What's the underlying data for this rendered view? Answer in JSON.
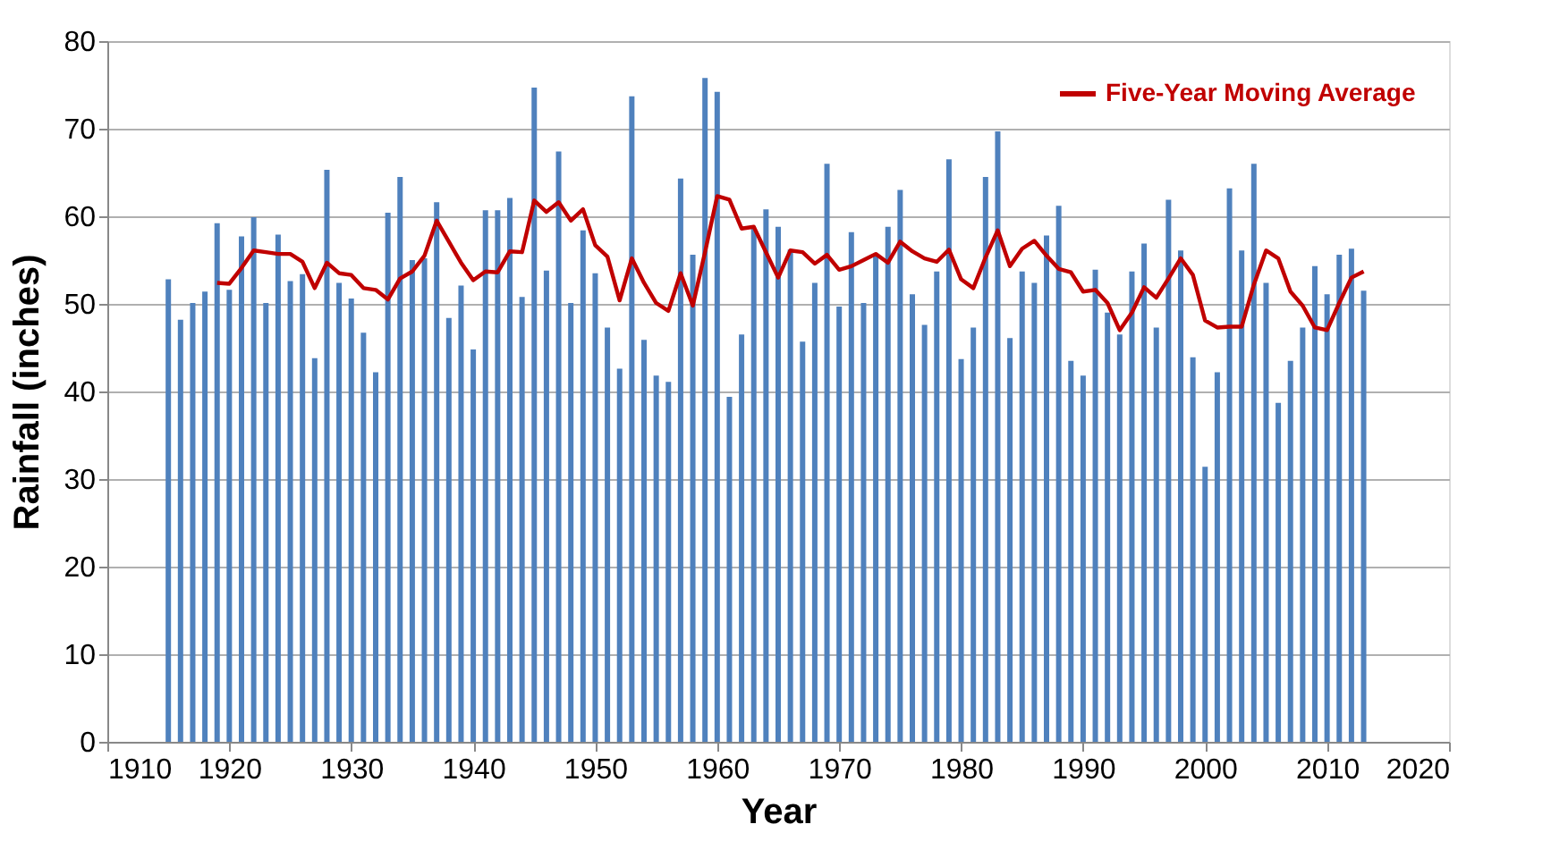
{
  "chart_data": {
    "type": "bar",
    "xlabel": "Year",
    "ylabel": "Rainfall (inches)",
    "x": [
      1915,
      1916,
      1917,
      1918,
      1919,
      1920,
      1921,
      1922,
      1923,
      1924,
      1925,
      1926,
      1927,
      1928,
      1929,
      1930,
      1931,
      1932,
      1933,
      1934,
      1935,
      1936,
      1937,
      1938,
      1939,
      1940,
      1941,
      1942,
      1943,
      1944,
      1945,
      1946,
      1947,
      1948,
      1949,
      1950,
      1951,
      1952,
      1953,
      1954,
      1955,
      1956,
      1957,
      1958,
      1959,
      1960,
      1961,
      1962,
      1963,
      1964,
      1965,
      1966,
      1967,
      1968,
      1969,
      1970,
      1971,
      1972,
      1973,
      1974,
      1975,
      1976,
      1977,
      1978,
      1979,
      1980,
      1981,
      1982,
      1983,
      1984,
      1985,
      1986,
      1987,
      1988,
      1989,
      1990,
      1991,
      1992,
      1993,
      1994,
      1995,
      1996,
      1997,
      1998,
      1999,
      2000,
      2001,
      2002,
      2003,
      2004,
      2005,
      2006,
      2007,
      2008,
      2009,
      2010,
      2011,
      2012,
      2013
    ],
    "series": [
      {
        "color": "#4f81bd",
        "values": [
          52.8,
          48.2,
          50.1,
          51.4,
          59.2,
          51.6,
          57.7,
          59.9,
          50.1,
          57.9,
          52.6,
          53.4,
          43.8,
          65.3,
          52.4,
          50.6,
          46.7,
          42.2,
          60.4,
          64.5,
          55.0,
          55.2,
          61.6,
          48.4,
          52.1,
          44.8,
          60.7,
          60.7,
          62.1,
          50.8,
          74.7,
          53.8,
          67.4,
          50.1,
          58.4,
          53.5,
          47.3,
          42.6,
          73.7,
          45.9,
          41.8,
          41.1,
          64.3,
          55.6,
          75.8,
          74.2,
          39.4,
          46.5,
          58.6,
          60.8,
          58.8,
          56.2,
          45.7,
          52.4,
          66.0,
          49.7,
          58.2,
          50.1,
          55.5,
          58.8,
          63.0,
          51.1,
          47.6,
          53.7,
          66.5,
          43.7,
          47.3,
          64.5,
          69.7,
          46.1,
          53.7,
          52.4,
          57.8,
          61.2,
          43.5,
          41.8,
          53.9,
          49.0,
          46.5,
          53.7,
          56.9,
          47.3,
          61.9,
          56.1,
          43.9,
          31.4,
          42.2,
          63.2,
          56.1,
          66.0,
          52.4,
          38.7,
          43.5,
          47.3,
          54.3,
          51.1,
          55.6,
          56.3,
          51.5
        ]
      },
      {
        "type": "line",
        "name": "Five-Year Moving Average",
        "color": "#c00000",
        "x": [
          1919,
          1920,
          1921,
          1922,
          1923,
          1924,
          1925,
          1926,
          1927,
          1928,
          1929,
          1930,
          1931,
          1932,
          1933,
          1934,
          1935,
          1936,
          1937,
          1938,
          1939,
          1940,
          1941,
          1942,
          1943,
          1944,
          1945,
          1946,
          1947,
          1948,
          1949,
          1950,
          1951,
          1952,
          1953,
          1954,
          1955,
          1956,
          1957,
          1958,
          1959,
          1960,
          1961,
          1962,
          1963,
          1964,
          1965,
          1966,
          1967,
          1968,
          1969,
          1970,
          1971,
          1972,
          1973,
          1974,
          1975,
          1976,
          1977,
          1978,
          1979,
          1980,
          1981,
          1982,
          1983,
          1984,
          1985,
          1986,
          1987,
          1988,
          1989,
          1990,
          1991,
          1992,
          1993,
          1994,
          1995,
          1996,
          1997,
          1998,
          1999,
          2000,
          2001,
          2002,
          2003,
          2004,
          2005,
          2006,
          2007,
          2008,
          2009,
          2010,
          2011,
          2012,
          2013
        ],
        "values": [
          52.4,
          52.3,
          54.1,
          56.1,
          55.9,
          55.7,
          55.7,
          54.8,
          51.8,
          54.7,
          53.5,
          53.3,
          51.8,
          51.6,
          50.5,
          52.9,
          53.7,
          55.5,
          59.5,
          57.1,
          54.7,
          52.7,
          53.7,
          53.6,
          56.0,
          55.9,
          61.8,
          60.5,
          61.6,
          59.5,
          60.8,
          56.7,
          55.4,
          50.4,
          55.2,
          52.4,
          50.1,
          49.2,
          53.5,
          49.8,
          55.9,
          62.3,
          61.9,
          58.6,
          58.8,
          55.9,
          53.0,
          56.1,
          55.9,
          54.6,
          55.6,
          53.9,
          54.3,
          55.0,
          55.7,
          54.7,
          57.1,
          56.0,
          55.2,
          54.8,
          56.2,
          52.8,
          51.8,
          55.3,
          58.4,
          54.3,
          56.3,
          57.2,
          55.5,
          54.0,
          53.6,
          51.4,
          51.6,
          50.1,
          47.0,
          49.0,
          51.9,
          50.7,
          52.9,
          55.2,
          53.3,
          48.1,
          47.3,
          47.4,
          47.4,
          52.2,
          56.1,
          55.2,
          51.4,
          49.8,
          47.3,
          47.0,
          50.1,
          53.0,
          53.7
        ]
      }
    ],
    "xlim": [
      1910,
      2020
    ],
    "xticks": [
      1910,
      1920,
      1930,
      1940,
      1950,
      1960,
      1970,
      1980,
      1990,
      2000,
      2010,
      2020
    ],
    "ylim": [
      0,
      80
    ],
    "yticks": [
      0,
      10,
      20,
      30,
      40,
      50,
      60,
      70,
      80
    ],
    "grid": "y",
    "legend": "top right"
  }
}
